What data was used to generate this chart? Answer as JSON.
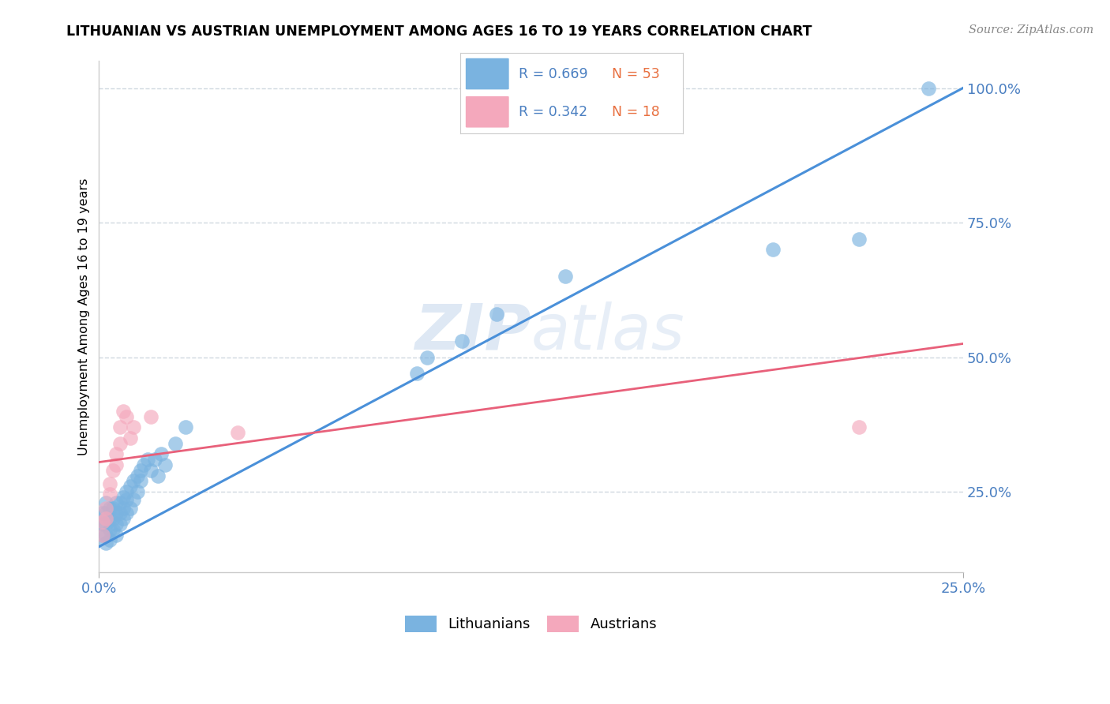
{
  "title": "LITHUANIAN VS AUSTRIAN UNEMPLOYMENT AMONG AGES 16 TO 19 YEARS CORRELATION CHART",
  "source": "Source: ZipAtlas.com",
  "xlim": [
    0.0,
    0.25
  ],
  "ylim": [
    0.1,
    1.05
  ],
  "r_blue": 0.669,
  "n_blue": 53,
  "r_pink": 0.342,
  "n_pink": 18,
  "blue_color": "#7ab3e0",
  "pink_color": "#f4a8bc",
  "line_blue": "#4a90d9",
  "line_pink": "#e8607a",
  "text_color": "#4a7fc1",
  "orange_color": "#e87040",
  "watermark_color": "#d0dff0",
  "blue_line_y0": 0.148,
  "blue_line_y1": 1.0,
  "pink_line_y0": 0.305,
  "pink_line_y1": 0.525,
  "blue_x": [
    0.001,
    0.001,
    0.001,
    0.002,
    0.002,
    0.002,
    0.002,
    0.002,
    0.003,
    0.003,
    0.003,
    0.003,
    0.004,
    0.004,
    0.004,
    0.005,
    0.005,
    0.005,
    0.005,
    0.006,
    0.006,
    0.006,
    0.007,
    0.007,
    0.007,
    0.008,
    0.008,
    0.008,
    0.009,
    0.009,
    0.01,
    0.01,
    0.011,
    0.011,
    0.012,
    0.012,
    0.013,
    0.014,
    0.015,
    0.016,
    0.017,
    0.018,
    0.019,
    0.022,
    0.025,
    0.092,
    0.095,
    0.105,
    0.115,
    0.135,
    0.195,
    0.22,
    0.24
  ],
  "blue_y": [
    0.17,
    0.19,
    0.21,
    0.155,
    0.17,
    0.19,
    0.21,
    0.23,
    0.16,
    0.18,
    0.2,
    0.22,
    0.18,
    0.2,
    0.22,
    0.17,
    0.19,
    0.21,
    0.23,
    0.19,
    0.21,
    0.23,
    0.2,
    0.22,
    0.24,
    0.21,
    0.235,
    0.25,
    0.22,
    0.26,
    0.235,
    0.27,
    0.25,
    0.28,
    0.27,
    0.29,
    0.3,
    0.31,
    0.29,
    0.31,
    0.28,
    0.32,
    0.3,
    0.34,
    0.37,
    0.47,
    0.5,
    0.53,
    0.58,
    0.65,
    0.7,
    0.72,
    1.0
  ],
  "pink_x": [
    0.001,
    0.001,
    0.002,
    0.002,
    0.003,
    0.003,
    0.004,
    0.005,
    0.005,
    0.006,
    0.006,
    0.007,
    0.008,
    0.009,
    0.01,
    0.015,
    0.04,
    0.22
  ],
  "pink_y": [
    0.17,
    0.195,
    0.2,
    0.22,
    0.245,
    0.265,
    0.29,
    0.3,
    0.32,
    0.34,
    0.37,
    0.4,
    0.39,
    0.35,
    0.37,
    0.39,
    0.36,
    0.37
  ]
}
